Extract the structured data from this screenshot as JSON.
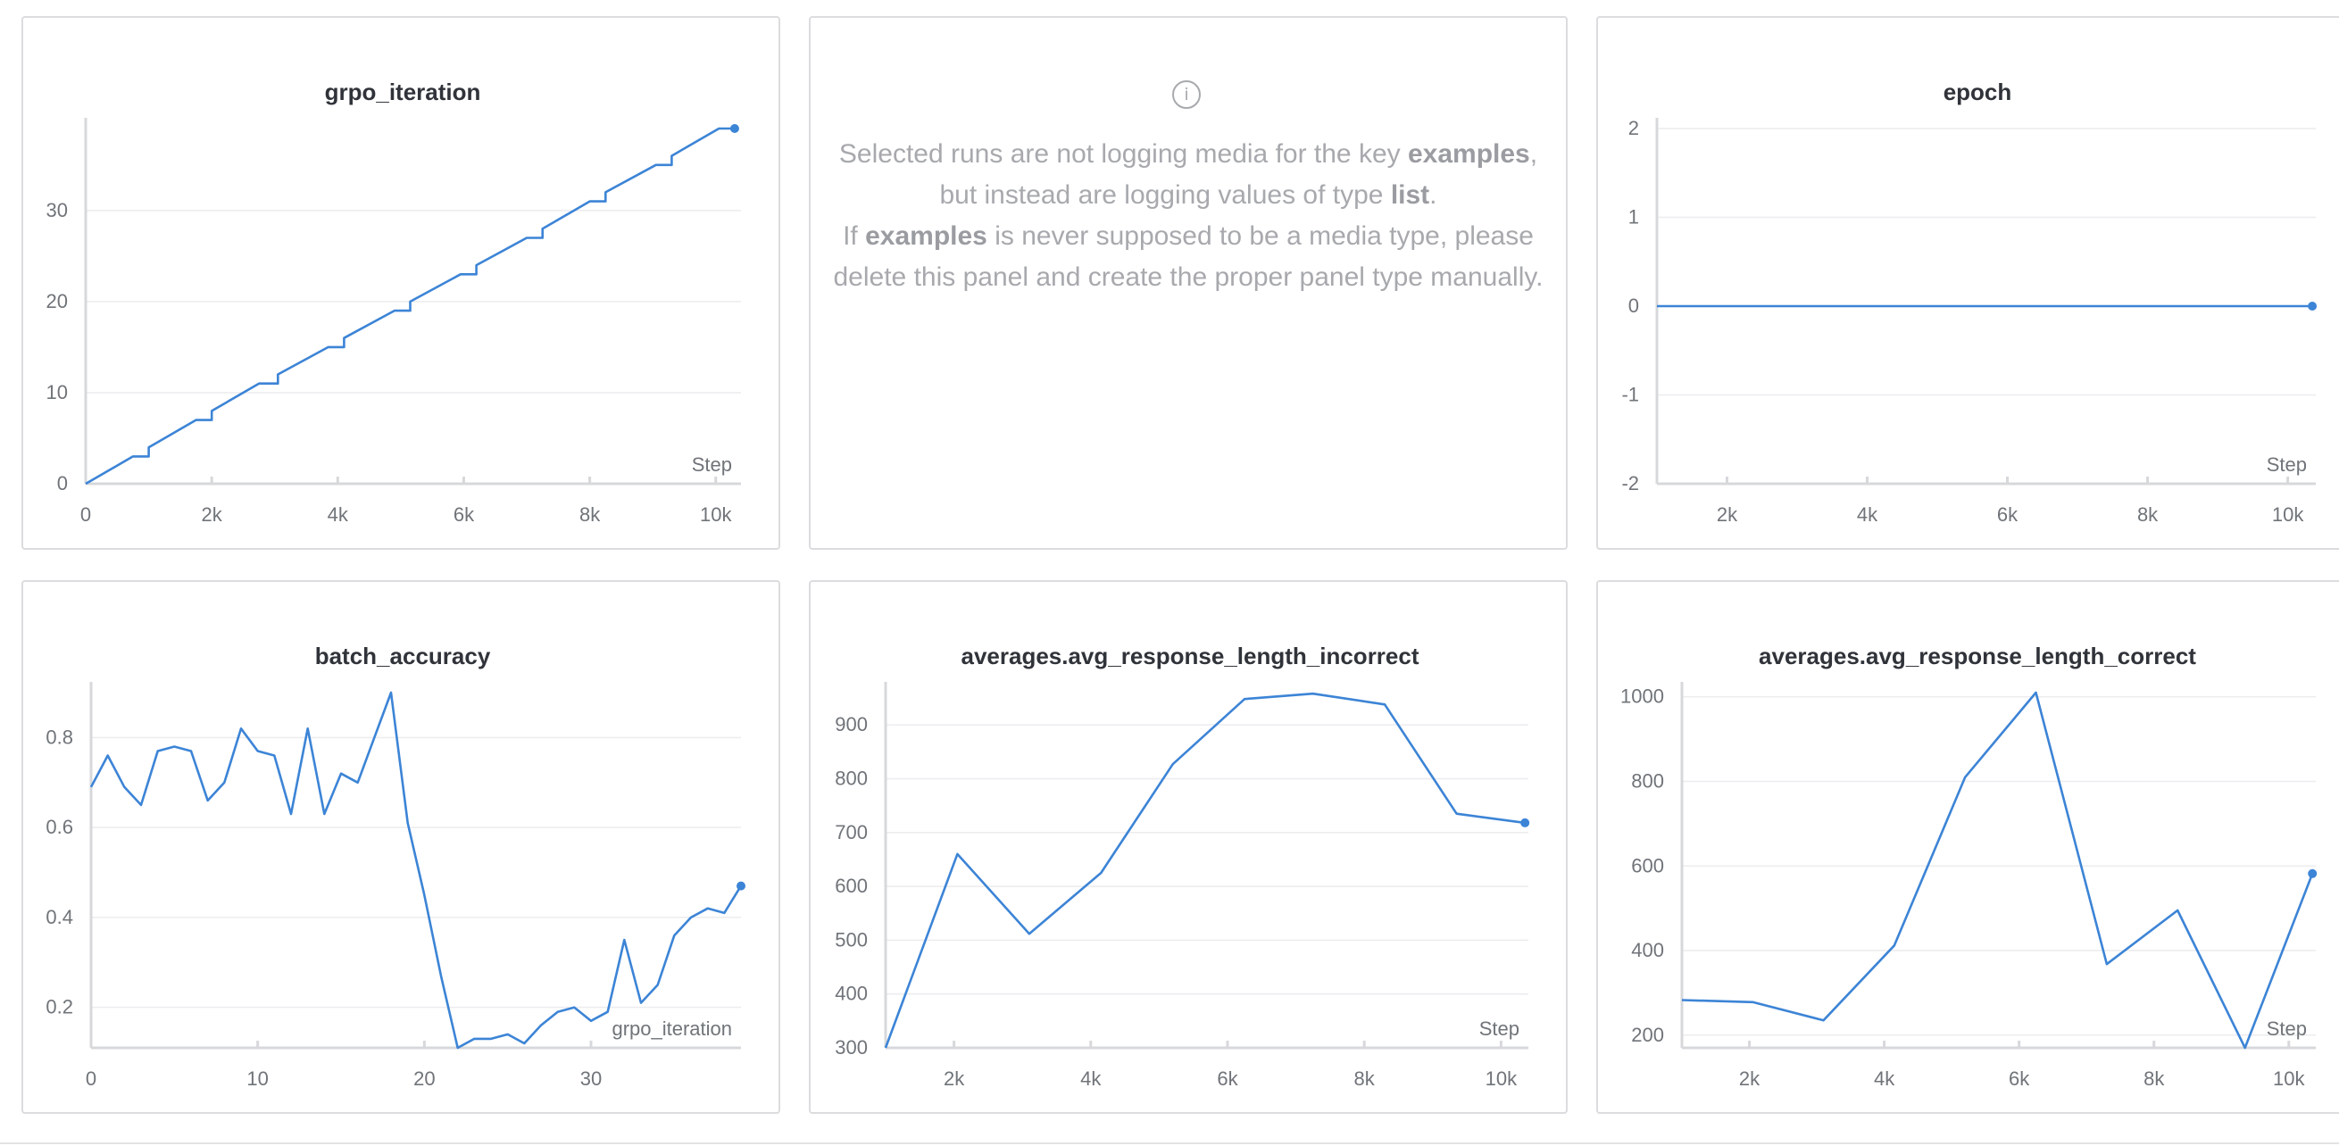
{
  "chart_data": [
    {
      "id": "grpo_iteration",
      "type": "line",
      "title": "grpo_iteration",
      "xlabel": "Step",
      "xlim": [
        0,
        10400
      ],
      "ylim": [
        0,
        39
      ],
      "xticks": [
        0,
        2000,
        4000,
        6000,
        8000,
        10000
      ],
      "xtick_labels": [
        "0",
        "2k",
        "4k",
        "6k",
        "8k",
        "10k"
      ],
      "yticks": [
        0,
        10,
        20,
        30
      ],
      "ytick_labels": [
        "0",
        "10",
        "20",
        "30"
      ],
      "grid": true,
      "series": [
        {
          "x": [
            0,
            750,
            1000,
            1000,
            1750,
            2000,
            2000,
            2750,
            3050,
            3050,
            3850,
            4100,
            4100,
            4900,
            5150,
            5150,
            5950,
            6200,
            6200,
            7000,
            7250,
            7250,
            8000,
            8250,
            8250,
            9050,
            9300,
            9300,
            10050,
            10300
          ],
          "y": [
            0,
            3,
            3,
            4,
            7,
            7,
            8,
            11,
            11,
            12,
            15,
            15,
            16,
            19,
            19,
            20,
            23,
            23,
            24,
            27,
            27,
            28,
            31,
            31,
            32,
            35,
            35,
            36,
            39,
            39
          ]
        }
      ]
    },
    {
      "id": "epoch",
      "type": "line",
      "title": "epoch",
      "xlabel": "Step",
      "xlim": [
        1000,
        10400
      ],
      "ylim": [
        -2,
        2
      ],
      "xticks": [
        2000,
        4000,
        6000,
        8000,
        10000
      ],
      "xtick_labels": [
        "2k",
        "4k",
        "6k",
        "8k",
        "10k"
      ],
      "yticks": [
        -2,
        -1,
        0,
        1,
        2
      ],
      "ytick_labels": [
        "-2",
        "-1",
        "0",
        "1",
        "2"
      ],
      "grid": true,
      "series": [
        {
          "x": [
            1000,
            10350
          ],
          "y": [
            0,
            0
          ]
        }
      ]
    },
    {
      "id": "batch_accuracy",
      "type": "line",
      "title": "batch_accuracy",
      "xlabel": "grpo_iteration",
      "xlim": [
        0,
        39
      ],
      "ylim": [
        0.11,
        0.9
      ],
      "xticks": [
        0,
        10,
        20,
        30
      ],
      "xtick_labels": [
        "0",
        "10",
        "20",
        "30"
      ],
      "yticks": [
        0.2,
        0.4,
        0.6,
        0.8
      ],
      "ytick_labels": [
        "0.2",
        "0.4",
        "0.6",
        "0.8"
      ],
      "grid": true,
      "series": [
        {
          "x": [
            0,
            1,
            2,
            3,
            4,
            5,
            6,
            7,
            8,
            9,
            10,
            11,
            12,
            13,
            14,
            15,
            16,
            17,
            18,
            19,
            20,
            21,
            22,
            23,
            24,
            25,
            26,
            27,
            28,
            29,
            30,
            31,
            32,
            33,
            34,
            35,
            36,
            37,
            38,
            39
          ],
          "y": [
            0.69,
            0.76,
            0.69,
            0.65,
            0.77,
            0.78,
            0.77,
            0.66,
            0.7,
            0.82,
            0.77,
            0.76,
            0.63,
            0.82,
            0.63,
            0.72,
            0.7,
            0.8,
            0.9,
            0.61,
            0.45,
            0.27,
            0.11,
            0.13,
            0.13,
            0.14,
            0.12,
            0.16,
            0.19,
            0.2,
            0.17,
            0.19,
            0.35,
            0.21,
            0.25,
            0.36,
            0.4,
            0.42,
            0.41,
            0.47
          ]
        }
      ]
    },
    {
      "id": "avg_incorrect",
      "type": "line",
      "title": "averages.avg_response_length_incorrect",
      "xlabel": "Step",
      "xlim": [
        1000,
        10400
      ],
      "ylim": [
        300,
        960
      ],
      "xticks": [
        2000,
        4000,
        6000,
        8000,
        10000
      ],
      "xtick_labels": [
        "2k",
        "4k",
        "6k",
        "8k",
        "10k"
      ],
      "yticks": [
        300,
        400,
        500,
        600,
        700,
        800,
        900
      ],
      "ytick_labels": [
        "300",
        "400",
        "500",
        "600",
        "700",
        "800",
        "900"
      ],
      "grid": true,
      "series": [
        {
          "x": [
            1000,
            2050,
            3100,
            4150,
            5200,
            6250,
            7250,
            8300,
            9350,
            10350
          ],
          "y": [
            300,
            660,
            512,
            625,
            827,
            948,
            958,
            938,
            735,
            718
          ]
        }
      ]
    },
    {
      "id": "avg_correct",
      "type": "line",
      "title": "averages.avg_response_length_correct",
      "xlabel": "Step",
      "xlim": [
        1000,
        10400
      ],
      "ylim": [
        170,
        1010
      ],
      "xticks": [
        2000,
        4000,
        6000,
        8000,
        10000
      ],
      "xtick_labels": [
        "2k",
        "4k",
        "6k",
        "8k",
        "10k"
      ],
      "yticks": [
        200,
        400,
        600,
        800,
        1000
      ],
      "ytick_labels": [
        "200",
        "400",
        "600",
        "800",
        "1000"
      ],
      "grid": true,
      "series": [
        {
          "x": [
            1000,
            2050,
            3100,
            4150,
            5200,
            6250,
            7300,
            8350,
            9350,
            10350
          ],
          "y": [
            283,
            278,
            235,
            412,
            810,
            1010,
            368,
            495,
            170,
            582
          ]
        }
      ]
    }
  ],
  "media_panel": {
    "icon": "info-icon",
    "line1_before": "Selected runs are not logging media for the key ",
    "line1_key": "examples",
    "line1_after": ",",
    "line2_before": "but instead are logging values of type ",
    "line2_type": "list",
    "line2_after": ".",
    "line3_before": "If ",
    "line3_key": "examples",
    "line3_after": " is never supposed to be a media type, please",
    "line4": "delete this panel and create the proper panel type manually."
  },
  "colors": {
    "series": "#3c84d6",
    "grid": "#ececef",
    "axis": "#d7d8db",
    "text": "#707479"
  }
}
